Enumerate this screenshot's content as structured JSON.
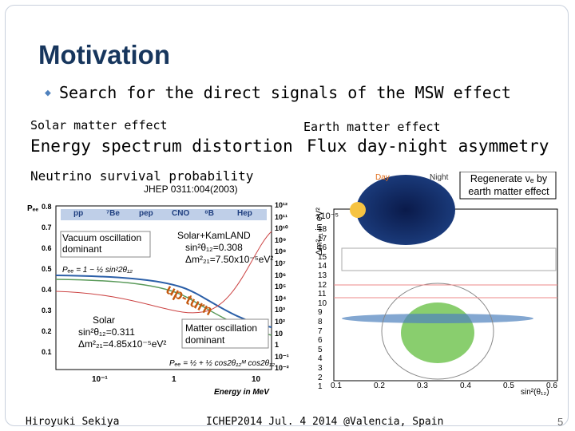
{
  "title": "Motivation",
  "bullet": "Search for the direct signals of the MSW effect",
  "left": {
    "heading": "Solar matter effect",
    "subheading": "Energy spectrum distortion",
    "plot_title": "Neutrino survival probability",
    "reference": "JHEP 0311:004(2003)",
    "legend": [
      "pp",
      "⁷Be",
      "pep",
      "CNO",
      "⁸B",
      "Hep"
    ],
    "y_label": "Pₑₑ",
    "y_ticks": [
      "0.8",
      "0.7",
      "0.6",
      "0.5",
      "0.4",
      "0.3",
      "0.2",
      "0.1"
    ],
    "x_ticks": [
      "10⁻¹",
      "1",
      "10"
    ],
    "x_label": "Energy in MeV",
    "flux_ticks": [
      "10¹²",
      "10¹¹",
      "10¹⁰",
      "10⁹",
      "10⁸",
      "10⁷",
      "10⁶",
      "10⁵",
      "10⁴",
      "10³",
      "10²",
      "10",
      "1",
      "10⁻¹",
      "10⁻²"
    ],
    "vacuum": "Vacuum oscillation dominant",
    "solar_kamland": [
      "Solar+KamLAND",
      "sin²θ₁₂=0.308",
      "Δm²₂₁=7.50x10⁻⁵eV²"
    ],
    "upturn": "up-turn",
    "solar": [
      "Solar",
      "sin²θ₁₂=0.311",
      "Δm²₂₁=4.85x10⁻⁵eV²"
    ],
    "matter": "Matter oscillation dominant",
    "formula_low": "Pₑₑ = 1 − ½ sin²2θ₁₂",
    "formula_high": "Pₑₑ = ½ + ½ cos2θ₁₂ᴹ cos2θ₁₂"
  },
  "right": {
    "heading": "Earth matter effect",
    "subheading": "Flux day-night asymmetry",
    "day": "Day",
    "night": "Night",
    "regenerate": "Regenerate νₑ by earth matter effect",
    "y_scale": "x10⁻⁵",
    "y_label": "Δm²₂₁ in eV²",
    "y_ticks": [
      "18",
      "17",
      "16",
      "15",
      "14",
      "13",
      "12",
      "11",
      "10",
      "9",
      "8",
      "7",
      "6",
      "5",
      "4",
      "3",
      "2",
      "1"
    ],
    "x_ticks": [
      "0.1",
      "0.2",
      "0.3",
      "0.4",
      "0.5",
      "0.6"
    ],
    "x_label": "sin²(θ₁₂)"
  },
  "footer": {
    "author": "Hiroyuki Sekiya",
    "event": "ICHEP2014 Jul. 4 2014 @Valencia, Spain",
    "page": "5"
  }
}
